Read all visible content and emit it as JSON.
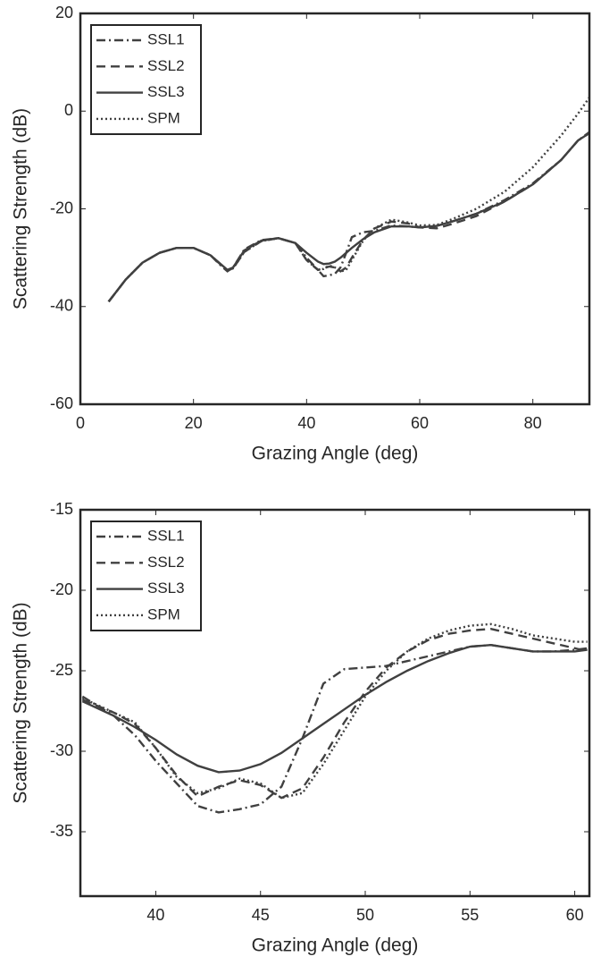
{
  "chart_data": [
    {
      "type": "line",
      "xlabel": "Grazing Angle (deg)",
      "ylabel": "Scattering Strength (dB)",
      "x": [
        5,
        8,
        11,
        14,
        17,
        20,
        23,
        25,
        26,
        27,
        29,
        32,
        35,
        38,
        40,
        42,
        43,
        44,
        45,
        46,
        47,
        48,
        50,
        52,
        55,
        58,
        60,
        63,
        66,
        70,
        75,
        80,
        85,
        88,
        90
      ],
      "series": [
        {
          "name": "SSL1",
          "color": "#404040",
          "dash": "dashdot",
          "values": [
            -39,
            -34.5,
            -31,
            -29,
            -28,
            -28,
            -29.5,
            -31.8,
            -32.8,
            -32,
            -28.3,
            -26.4,
            -26,
            -27,
            -30,
            -32.5,
            -33.8,
            -33.6,
            -33.3,
            -32,
            -29,
            -25.8,
            -24.8,
            -24.5,
            -23.4,
            -23.6,
            -23.8,
            -23.5,
            -22.5,
            -21,
            -18.2,
            -14.8,
            -10,
            -6,
            -4.3
          ]
        },
        {
          "name": "SSL2",
          "color": "#404040",
          "dash": "dashed",
          "values": [
            -39,
            -34.5,
            -31,
            -29,
            -28,
            -28,
            -29.5,
            -31.6,
            -32.6,
            -32.2,
            -28.8,
            -26.6,
            -26,
            -27,
            -30.5,
            -32.5,
            -32.2,
            -31.8,
            -32,
            -32.8,
            -32,
            -30,
            -26.3,
            -24,
            -22.6,
            -23,
            -23.8,
            -24,
            -23,
            -21.5,
            -18.5,
            -15,
            -10,
            -6,
            -4.5
          ]
        },
        {
          "name": "SSL3",
          "color": "#404040",
          "dash": "solid",
          "values": [
            -39,
            -34.5,
            -31,
            -29,
            -28,
            -28,
            -29.5,
            -31.5,
            -32.5,
            -32,
            -28.5,
            -26.5,
            -26,
            -27,
            -29,
            -30.8,
            -31.3,
            -31.2,
            -30.8,
            -30,
            -29,
            -28,
            -26.2,
            -24.8,
            -23.6,
            -23.6,
            -23.8,
            -23.5,
            -22.5,
            -21,
            -18.5,
            -15,
            -10,
            -6,
            -4.5
          ]
        },
        {
          "name": "SPM",
          "color": "#404040",
          "dash": "dotted",
          "values": [
            -39,
            -34.5,
            -31,
            -29,
            -28,
            -28,
            -29.5,
            -31.6,
            -32.6,
            -32.2,
            -28.8,
            -26.6,
            -26,
            -27,
            -30.5,
            -32.5,
            -32.3,
            -31.6,
            -32,
            -32.8,
            -32.5,
            -30.5,
            -26.5,
            -24,
            -22.2,
            -22.8,
            -23.4,
            -23.3,
            -22,
            -20,
            -16.5,
            -11.5,
            -5,
            -0.5,
            2.8
          ]
        }
      ],
      "xlim": [
        0,
        90
      ],
      "ylim": [
        -60,
        20
      ],
      "xticks": [
        0,
        20,
        40,
        60,
        80
      ],
      "yticks": [
        -60,
        -40,
        -20,
        0,
        20
      ],
      "legend": "upper left"
    },
    {
      "type": "line",
      "xlabel": "Grazing Angle (deg)",
      "ylabel": "Scattering Strength (dB)",
      "x": [
        36.5,
        38,
        39,
        40,
        41,
        42,
        43,
        44,
        45,
        46,
        47,
        48,
        49,
        50,
        51,
        52,
        53,
        54,
        55,
        56,
        57,
        58,
        59,
        60,
        60.6
      ],
      "series": [
        {
          "name": "SSL1",
          "color": "#404040",
          "dash": "dashdot",
          "values": [
            -26.6,
            -27.8,
            -29,
            -30.6,
            -32,
            -33.4,
            -33.8,
            -33.6,
            -33.3,
            -32.2,
            -29.2,
            -25.8,
            -24.9,
            -24.8,
            -24.7,
            -24.4,
            -24.1,
            -23.8,
            -23.5,
            -23.4,
            -23.6,
            -23.8,
            -23.8,
            -23.7,
            -23.6
          ]
        },
        {
          "name": "SSL2",
          "color": "#404040",
          "dash": "dashed",
          "values": [
            -26.8,
            -27.6,
            -28.3,
            -29.8,
            -31.5,
            -32.8,
            -32.2,
            -31.8,
            -32.1,
            -32.9,
            -32.3,
            -30.4,
            -28.2,
            -26.3,
            -24.8,
            -23.8,
            -23.1,
            -22.7,
            -22.5,
            -22.4,
            -22.7,
            -23,
            -23.3,
            -23.6,
            -23.8
          ]
        },
        {
          "name": "SSL3",
          "color": "#404040",
          "dash": "solid",
          "values": [
            -26.9,
            -27.8,
            -28.5,
            -29.3,
            -30.2,
            -30.9,
            -31.3,
            -31.2,
            -30.8,
            -30.1,
            -29.2,
            -28.3,
            -27.4,
            -26.5,
            -25.7,
            -25,
            -24.4,
            -23.9,
            -23.5,
            -23.4,
            -23.6,
            -23.8,
            -23.8,
            -23.8,
            -23.7
          ]
        },
        {
          "name": "SPM",
          "color": "#404040",
          "dash": "dotted",
          "values": [
            -26.7,
            -27.6,
            -28.2,
            -29.8,
            -31.6,
            -32.6,
            -32.3,
            -31.7,
            -32,
            -32.9,
            -32.6,
            -30.8,
            -28.7,
            -26.6,
            -25,
            -23.8,
            -23,
            -22.5,
            -22.2,
            -22.1,
            -22.4,
            -22.8,
            -23,
            -23.2,
            -23.2
          ]
        }
      ],
      "xlim": [
        36.4,
        60.7
      ],
      "ylim": [
        -39,
        -15
      ],
      "xticks": [
        40,
        45,
        50,
        55,
        60
      ],
      "yticks": [
        -35,
        -30,
        -25,
        -20,
        -15
      ],
      "legend": "upper left"
    }
  ]
}
